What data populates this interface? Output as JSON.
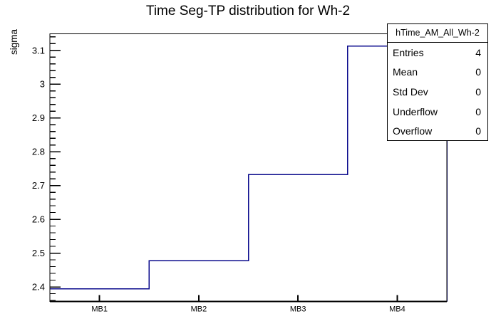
{
  "title": "Time Seg-TP distribution for Wh-2",
  "y_axis_title": "sigma",
  "stats_box": {
    "header": "hTime_AM_All_Wh-2",
    "rows": [
      {
        "label": "Entries",
        "value": "4"
      },
      {
        "label": "Mean",
        "value": "0"
      },
      {
        "label": "Std Dev",
        "value": "0"
      },
      {
        "label": "Underflow",
        "value": "0"
      },
      {
        "label": "Overflow",
        "value": "0"
      }
    ]
  },
  "colors": {
    "line": "#0a0a8c",
    "frame": "#000000",
    "background": "#ffffff"
  },
  "chart_data": {
    "type": "line",
    "style": "step-histogram",
    "title": "Time Seg-TP distribution for Wh-2",
    "xlabel": "",
    "ylabel": "sigma",
    "categories": [
      "MB1",
      "MB2",
      "MB3",
      "MB4"
    ],
    "values": [
      2.394,
      2.478,
      2.733,
      3.113
    ],
    "ylim": [
      2.357,
      3.149
    ],
    "y_major_ticks": [
      {
        "v": 2.4,
        "label": "2.4"
      },
      {
        "v": 2.5,
        "label": "2.5"
      },
      {
        "v": 2.6,
        "label": "2.6"
      },
      {
        "v": 2.7,
        "label": "2.7"
      },
      {
        "v": 2.8,
        "label": "2.8"
      },
      {
        "v": 2.9,
        "label": "2.9"
      },
      {
        "v": 3.0,
        "label": "3"
      },
      {
        "v": 3.1,
        "label": "3.1"
      }
    ],
    "y_minor_step": 0.02,
    "grid": false,
    "legend": false
  }
}
